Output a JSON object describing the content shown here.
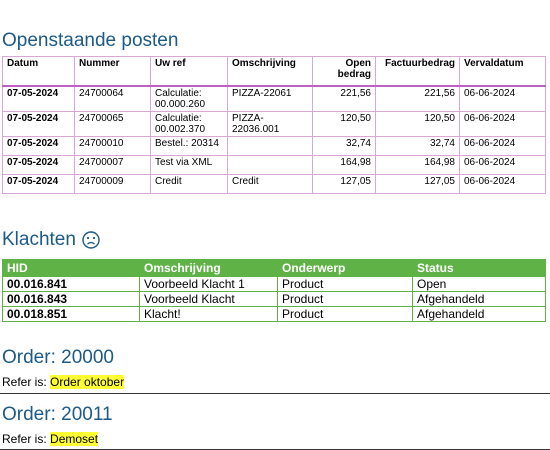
{
  "posten": {
    "title": "Openstaande posten",
    "headers": [
      "Datum",
      "Nummer",
      "Uw ref",
      "Omschrijving",
      "Open bedrag",
      "Factuurbedrag",
      "Vervaldatum"
    ],
    "rows": [
      {
        "datum": "07-05-2024",
        "nummer": "24700064",
        "ref": "Calculatie: 00.000.260",
        "oms": "PIZZA-22061",
        "open": "221,56",
        "fact": "221,56",
        "verval": "06-06-2024"
      },
      {
        "datum": "07-05-2024",
        "nummer": "24700065",
        "ref": "Calculatie: 00.002.370",
        "oms": "PIZZA-22036.001",
        "open": "120,50",
        "fact": "120,50",
        "verval": "06-06-2024"
      },
      {
        "datum": "07-05-2024",
        "nummer": "24700010",
        "ref": "Bestel.: 20314",
        "oms": "",
        "open": "32,74",
        "fact": "32,74",
        "verval": "06-06-2024"
      },
      {
        "datum": "07-05-2024",
        "nummer": "24700007",
        "ref": "Test via XML",
        "oms": "",
        "open": "164,98",
        "fact": "164,98",
        "verval": "06-06-2024"
      },
      {
        "datum": "07-05-2024",
        "nummer": "24700009",
        "ref": "Credit",
        "oms": "Credit",
        "open": "127,05",
        "fact": "127,05",
        "verval": "06-06-2024"
      }
    ]
  },
  "klachten": {
    "title": "Klachten",
    "icon": "sad-face-icon",
    "headers": [
      "HID",
      "Omschrijving",
      "Onderwerp",
      "Status"
    ],
    "rows": [
      {
        "hid": "00.016.841",
        "oms": "Voorbeeld Klacht 1",
        "onderwerp": "Product",
        "status": "Open"
      },
      {
        "hid": "00.016.843",
        "oms": "Voorbeeld Klacht",
        "onderwerp": "Product",
        "status": "Afgehandeld"
      },
      {
        "hid": "00.018.851",
        "oms": "Klacht!",
        "onderwerp": "Product",
        "status": "Afgehandeld"
      }
    ]
  },
  "orders": [
    {
      "title": "Order: 20000",
      "refer_label": "Refer is:",
      "refer_value": "Order oktober"
    },
    {
      "title": "Order: 20011",
      "refer_label": "Refer is:",
      "refer_value": "Demoset"
    }
  ],
  "colors": {
    "heading": "#1c5a88",
    "green": "#5fb346",
    "pink_border": "#d9a6d9",
    "highlight": "#ffff33"
  }
}
